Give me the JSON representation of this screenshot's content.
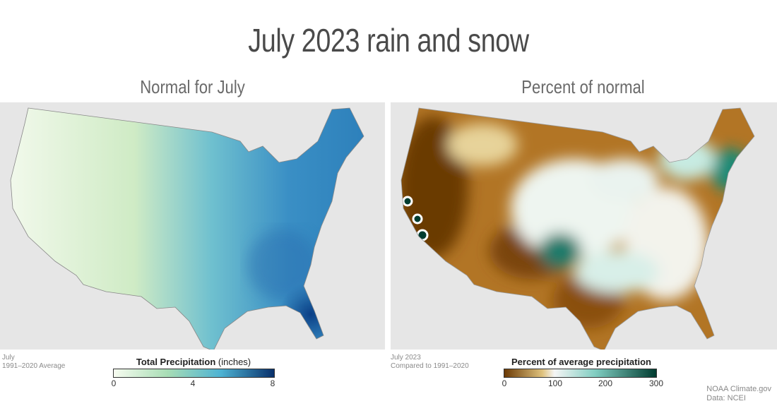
{
  "title": "July 2023 rain and snow",
  "left": {
    "subtitle": "Normal for July",
    "note_line1": "July",
    "note_line2": "1991–2020 Average",
    "legend_title_bold": "Total Precipitation",
    "legend_title_unit": " (inches)",
    "legend_ticks": [
      "0",
      "4",
      "8"
    ],
    "legend_range": [
      0,
      8
    ],
    "colors": [
      "#f7fcf0",
      "#a8ddb5",
      "#4eb3d3",
      "#08306b"
    ]
  },
  "right": {
    "subtitle": "Percent of normal",
    "note_line1": "July 2023",
    "note_line2": "Compared to 1991–2020",
    "legend_title": "Percent of average precipitation",
    "legend_ticks": [
      "0",
      "100",
      "200",
      "300"
    ],
    "legend_range": [
      0,
      300
    ],
    "colors": [
      "#6b3a05",
      "#dfc27d",
      "#f5f5f5",
      "#80cdc1",
      "#003c30"
    ]
  },
  "credit_line1": "NOAA Climate.gov",
  "credit_line2": "Data: NCEI"
}
